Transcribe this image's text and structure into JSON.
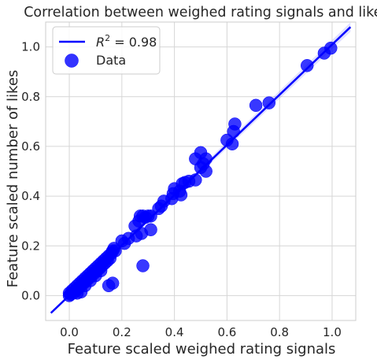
{
  "chart_data": {
    "type": "scatter",
    "title": "Correlation between weighed rating signals and likes?",
    "xlabel": "Feature scaled weighed rating signals",
    "ylabel": "Feature scaled number of likes",
    "xlim": [
      -0.09,
      1.09
    ],
    "ylim": [
      -0.1,
      1.1
    ],
    "xticks": [
      "0.0",
      "0.2",
      "0.4",
      "0.6",
      "0.8",
      "1.0"
    ],
    "yticks": [
      "0.0",
      "0.2",
      "0.4",
      "0.6",
      "0.8",
      "1.0"
    ],
    "grid": true,
    "legend_position": "top-left",
    "fit_line": {
      "label": "R² = 0.98",
      "label_parts": {
        "r": "R",
        "sup": "2",
        "rest": " = 0.98"
      },
      "x": [
        -0.07,
        1.07
      ],
      "y": [
        -0.07,
        1.08
      ],
      "color": "#0000ff"
    },
    "series": [
      {
        "name": "Data",
        "color": "#0000ff",
        "points": [
          [
            0.0,
            0.0
          ],
          [
            0.0,
            0.01
          ],
          [
            0.005,
            0.005
          ],
          [
            0.01,
            0.02
          ],
          [
            0.015,
            0.01
          ],
          [
            0.02,
            0.03
          ],
          [
            0.025,
            0.02
          ],
          [
            0.03,
            0.04
          ],
          [
            0.035,
            0.03
          ],
          [
            0.04,
            0.05
          ],
          [
            0.045,
            0.04
          ],
          [
            0.05,
            0.06
          ],
          [
            0.055,
            0.05
          ],
          [
            0.06,
            0.07
          ],
          [
            0.065,
            0.06
          ],
          [
            0.07,
            0.08
          ],
          [
            0.075,
            0.07
          ],
          [
            0.08,
            0.09
          ],
          [
            0.085,
            0.08
          ],
          [
            0.09,
            0.1
          ],
          [
            0.095,
            0.09
          ],
          [
            0.1,
            0.11
          ],
          [
            0.105,
            0.1
          ],
          [
            0.11,
            0.12
          ],
          [
            0.115,
            0.11
          ],
          [
            0.12,
            0.13
          ],
          [
            0.125,
            0.12
          ],
          [
            0.13,
            0.14
          ],
          [
            0.135,
            0.13
          ],
          [
            0.14,
            0.15
          ],
          [
            0.145,
            0.14
          ],
          [
            0.15,
            0.16
          ],
          [
            0.155,
            0.15
          ],
          [
            0.16,
            0.17
          ],
          [
            0.165,
            0.18
          ],
          [
            0.17,
            0.19
          ],
          [
            0.175,
            0.18
          ],
          [
            0.03,
            0.01
          ],
          [
            0.045,
            0.015
          ],
          [
            0.06,
            0.04
          ],
          [
            0.08,
            0.06
          ],
          [
            0.1,
            0.08
          ],
          [
            0.12,
            0.1
          ],
          [
            0.15,
            0.04
          ],
          [
            0.165,
            0.05
          ],
          [
            0.28,
            0.12
          ],
          [
            0.2,
            0.22
          ],
          [
            0.21,
            0.21
          ],
          [
            0.225,
            0.23
          ],
          [
            0.25,
            0.28
          ],
          [
            0.255,
            0.24
          ],
          [
            0.265,
            0.3
          ],
          [
            0.27,
            0.32
          ],
          [
            0.28,
            0.32
          ],
          [
            0.29,
            0.315
          ],
          [
            0.3,
            0.32
          ],
          [
            0.31,
            0.32
          ],
          [
            0.275,
            0.25
          ],
          [
            0.31,
            0.265
          ],
          [
            0.34,
            0.35
          ],
          [
            0.35,
            0.36
          ],
          [
            0.36,
            0.38
          ],
          [
            0.39,
            0.39
          ],
          [
            0.395,
            0.41
          ],
          [
            0.4,
            0.43
          ],
          [
            0.42,
            0.42
          ],
          [
            0.425,
            0.405
          ],
          [
            0.43,
            0.45
          ],
          [
            0.44,
            0.455
          ],
          [
            0.455,
            0.46
          ],
          [
            0.48,
            0.465
          ],
          [
            0.48,
            0.55
          ],
          [
            0.5,
            0.575
          ],
          [
            0.51,
            0.53
          ],
          [
            0.52,
            0.55
          ],
          [
            0.5,
            0.515
          ],
          [
            0.52,
            0.5
          ],
          [
            0.6,
            0.625
          ],
          [
            0.62,
            0.61
          ],
          [
            0.625,
            0.66
          ],
          [
            0.63,
            0.69
          ],
          [
            0.71,
            0.765
          ],
          [
            0.76,
            0.775
          ],
          [
            0.905,
            0.925
          ],
          [
            0.97,
            0.975
          ],
          [
            0.995,
            0.995
          ]
        ]
      }
    ]
  }
}
